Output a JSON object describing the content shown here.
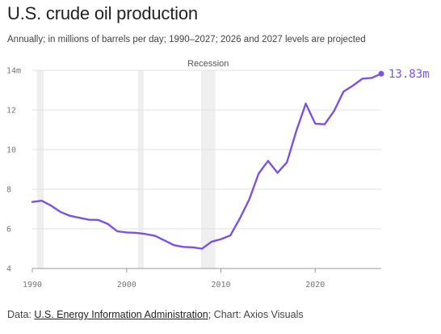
{
  "header": {
    "title": "U.S. crude oil production",
    "subtitle": "Annually; in millions of barrels per day; 1990–2027; 2026 and 2027 levels are projected"
  },
  "footer": {
    "data_prefix": "Data: ",
    "source_link": "U.S. Energy Information Administration",
    "chart_credit": "; Chart: Axios Visuals"
  },
  "colors": {
    "line": "#7b52e6",
    "recession_band": "#efefef",
    "axis": "#777777"
  },
  "chart_data": {
    "type": "line",
    "title": "U.S. crude oil production",
    "xlabel": "",
    "ylabel": "",
    "xlim": [
      1990,
      2027
    ],
    "ylim": [
      4,
      14
    ],
    "x_ticks": [
      1990,
      2000,
      2010,
      2020
    ],
    "y_ticks": [
      4,
      6,
      8,
      10,
      12,
      14
    ],
    "y_tick_labels": [
      "4",
      "6",
      "8",
      "10",
      "12",
      "14m"
    ],
    "grid": "horizontal",
    "recession_label": "Recession",
    "recessions": [
      [
        1990.5,
        1991.2
      ],
      [
        2001.2,
        2001.8
      ],
      [
        2007.9,
        2009.4
      ]
    ],
    "end_label": "13.83m",
    "series": [
      {
        "x": [
          1990,
          1991,
          1992,
          1993,
          1994,
          1995,
          1996,
          1997,
          1998,
          1999,
          2000,
          2001,
          2002,
          2003,
          2004,
          2005,
          2006,
          2007,
          2008,
          2009,
          2010,
          2011,
          2012,
          2013,
          2014,
          2015,
          2016,
          2017,
          2018,
          2019,
          2020,
          2021,
          2022,
          2023,
          2024,
          2025,
          2026,
          2027
        ],
        "values": [
          7.36,
          7.42,
          7.17,
          6.85,
          6.66,
          6.56,
          6.46,
          6.45,
          6.25,
          5.88,
          5.82,
          5.8,
          5.74,
          5.65,
          5.42,
          5.18,
          5.09,
          5.07,
          5.0,
          5.35,
          5.48,
          5.67,
          6.52,
          7.48,
          8.79,
          9.43,
          8.83,
          9.36,
          10.95,
          12.32,
          11.31,
          11.28,
          11.95,
          12.93,
          13.23,
          13.58,
          13.62,
          13.83
        ]
      }
    ]
  }
}
